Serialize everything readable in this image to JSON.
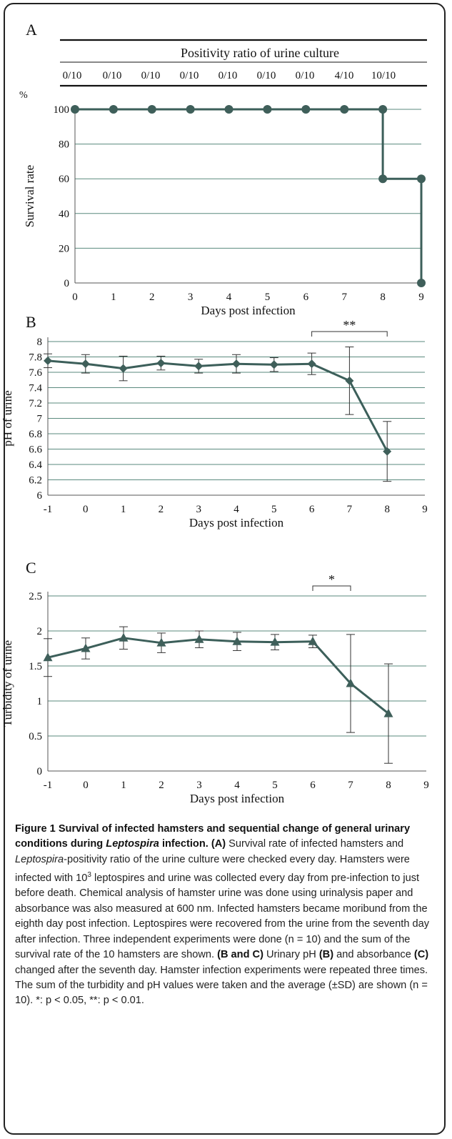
{
  "panels": {
    "a": {
      "letter": "A",
      "table_title": "Positivity ratio of urine culture",
      "ratios": [
        "0/10",
        "0/10",
        "0/10",
        "0/10",
        "0/10",
        "0/10",
        "0/10",
        "4/10",
        "10/10"
      ],
      "y_unit": "%"
    },
    "b": {
      "letter": "B",
      "sig_label": "**"
    },
    "c": {
      "letter": "C",
      "sig_label": "*"
    }
  },
  "chart_data": [
    {
      "type": "line",
      "panel": "A",
      "ylabel": "Survival rate",
      "xlabel": "Days post infection",
      "x_ticks": [
        0,
        1,
        2,
        3,
        4,
        5,
        6,
        7,
        8,
        9
      ],
      "y_ticks": [
        0,
        20,
        40,
        60,
        80,
        100
      ],
      "xlim": [
        0,
        9
      ],
      "ylim": [
        0,
        100
      ],
      "grid": true,
      "step": true,
      "points": [
        {
          "x": 0,
          "y": 100
        },
        {
          "x": 1,
          "y": 100
        },
        {
          "x": 2,
          "y": 100
        },
        {
          "x": 3,
          "y": 100
        },
        {
          "x": 4,
          "y": 100
        },
        {
          "x": 5,
          "y": 100
        },
        {
          "x": 6,
          "y": 100
        },
        {
          "x": 7,
          "y": 100
        },
        {
          "x": 8,
          "y": 100
        },
        {
          "x": 8,
          "y": 60
        },
        {
          "x": 9,
          "y": 60
        },
        {
          "x": 9,
          "y": 0
        }
      ]
    },
    {
      "type": "line",
      "panel": "B",
      "ylabel": "pH of urine",
      "xlabel": "Days post infection",
      "x_ticks": [
        -1,
        0,
        1,
        2,
        3,
        4,
        5,
        6,
        7,
        8,
        9
      ],
      "y_ticks": [
        "6",
        "6.2",
        "6.4",
        "6.6",
        "6.8",
        "7",
        "7.2",
        "7.4",
        "7.6",
        "7.8",
        "8"
      ],
      "xlim": [
        -1,
        9
      ],
      "ylim": [
        6,
        8
      ],
      "grid": true,
      "marker": "diamond",
      "points": [
        {
          "x": -1,
          "y": 7.75,
          "sd": 0.09
        },
        {
          "x": 0,
          "y": 7.71,
          "sd": 0.12
        },
        {
          "x": 1,
          "y": 7.65,
          "sd": 0.16
        },
        {
          "x": 2,
          "y": 7.72,
          "sd": 0.09
        },
        {
          "x": 3,
          "y": 7.68,
          "sd": 0.09
        },
        {
          "x": 4,
          "y": 7.71,
          "sd": 0.12
        },
        {
          "x": 5,
          "y": 7.7,
          "sd": 0.09
        },
        {
          "x": 6,
          "y": 7.71,
          "sd": 0.14
        },
        {
          "x": 7,
          "y": 7.49,
          "sd": 0.44
        },
        {
          "x": 8,
          "y": 6.57,
          "sd": 0.39
        }
      ],
      "significance": {
        "from": 6,
        "to": 8,
        "label": "**"
      }
    },
    {
      "type": "line",
      "panel": "C",
      "ylabel": "Turbidity of urine",
      "xlabel": "Days post infection",
      "x_ticks": [
        -1,
        0,
        1,
        2,
        3,
        4,
        5,
        6,
        7,
        8,
        9
      ],
      "y_ticks": [
        "0",
        "0.5",
        "1",
        "1.5",
        "2",
        "2.5"
      ],
      "xlim": [
        -1,
        9
      ],
      "ylim": [
        0,
        2.5
      ],
      "grid": true,
      "marker": "triangle",
      "points": [
        {
          "x": -1,
          "y": 1.62,
          "sd": 0.27
        },
        {
          "x": 0,
          "y": 1.75,
          "sd": 0.15
        },
        {
          "x": 1,
          "y": 1.9,
          "sd": 0.16
        },
        {
          "x": 2,
          "y": 1.83,
          "sd": 0.14
        },
        {
          "x": 3,
          "y": 1.88,
          "sd": 0.12
        },
        {
          "x": 4,
          "y": 1.85,
          "sd": 0.13
        },
        {
          "x": 5,
          "y": 1.84,
          "sd": 0.11
        },
        {
          "x": 6,
          "y": 1.85,
          "sd": 0.09
        },
        {
          "x": 7,
          "y": 1.25,
          "sd": 0.7
        },
        {
          "x": 8,
          "y": 0.82,
          "sd": 0.71
        }
      ],
      "significance": {
        "from": 6,
        "to": 7,
        "label": "*"
      }
    }
  ],
  "caption": {
    "head_1": "Figure 1 Survival of infected hamsters and sequential change of general urinary conditions during ",
    "head_italic": "Leptospira",
    "head_2": " infection. (A)",
    "p1": " Survival rate of infected hamsters and ",
    "p1_italic": "Leptospira",
    "p2": "-positivity ratio of the urine culture were checked every day. Hamsters were infected with 10",
    "p2_sup": "3",
    "p3": " leptospires and urine was collected every day from pre-infection to just before death. Chemical analysis of hamster urine was done using urinalysis paper and absorbance was also measured at 600 nm. Infected hamsters became moribund from the eighth day post infection. Leptospires were recovered from the urine from the seventh day after infection. Three independent experiments were done (n = 10) and the sum of the survival rate of the 10 hamsters are shown. ",
    "bc_1": "(B and C)",
    "p4": " Urinary pH ",
    "b_ref": "(B)",
    "p5": " and absorbance ",
    "c_ref": "(C)",
    "p6": " changed after the seventh day. Hamster infection experiments were repeated three times. The sum of the turbidity and pH values were taken and the average (±SD) are shown (n = 10). *: p < 0.05, **: p < 0.01."
  }
}
